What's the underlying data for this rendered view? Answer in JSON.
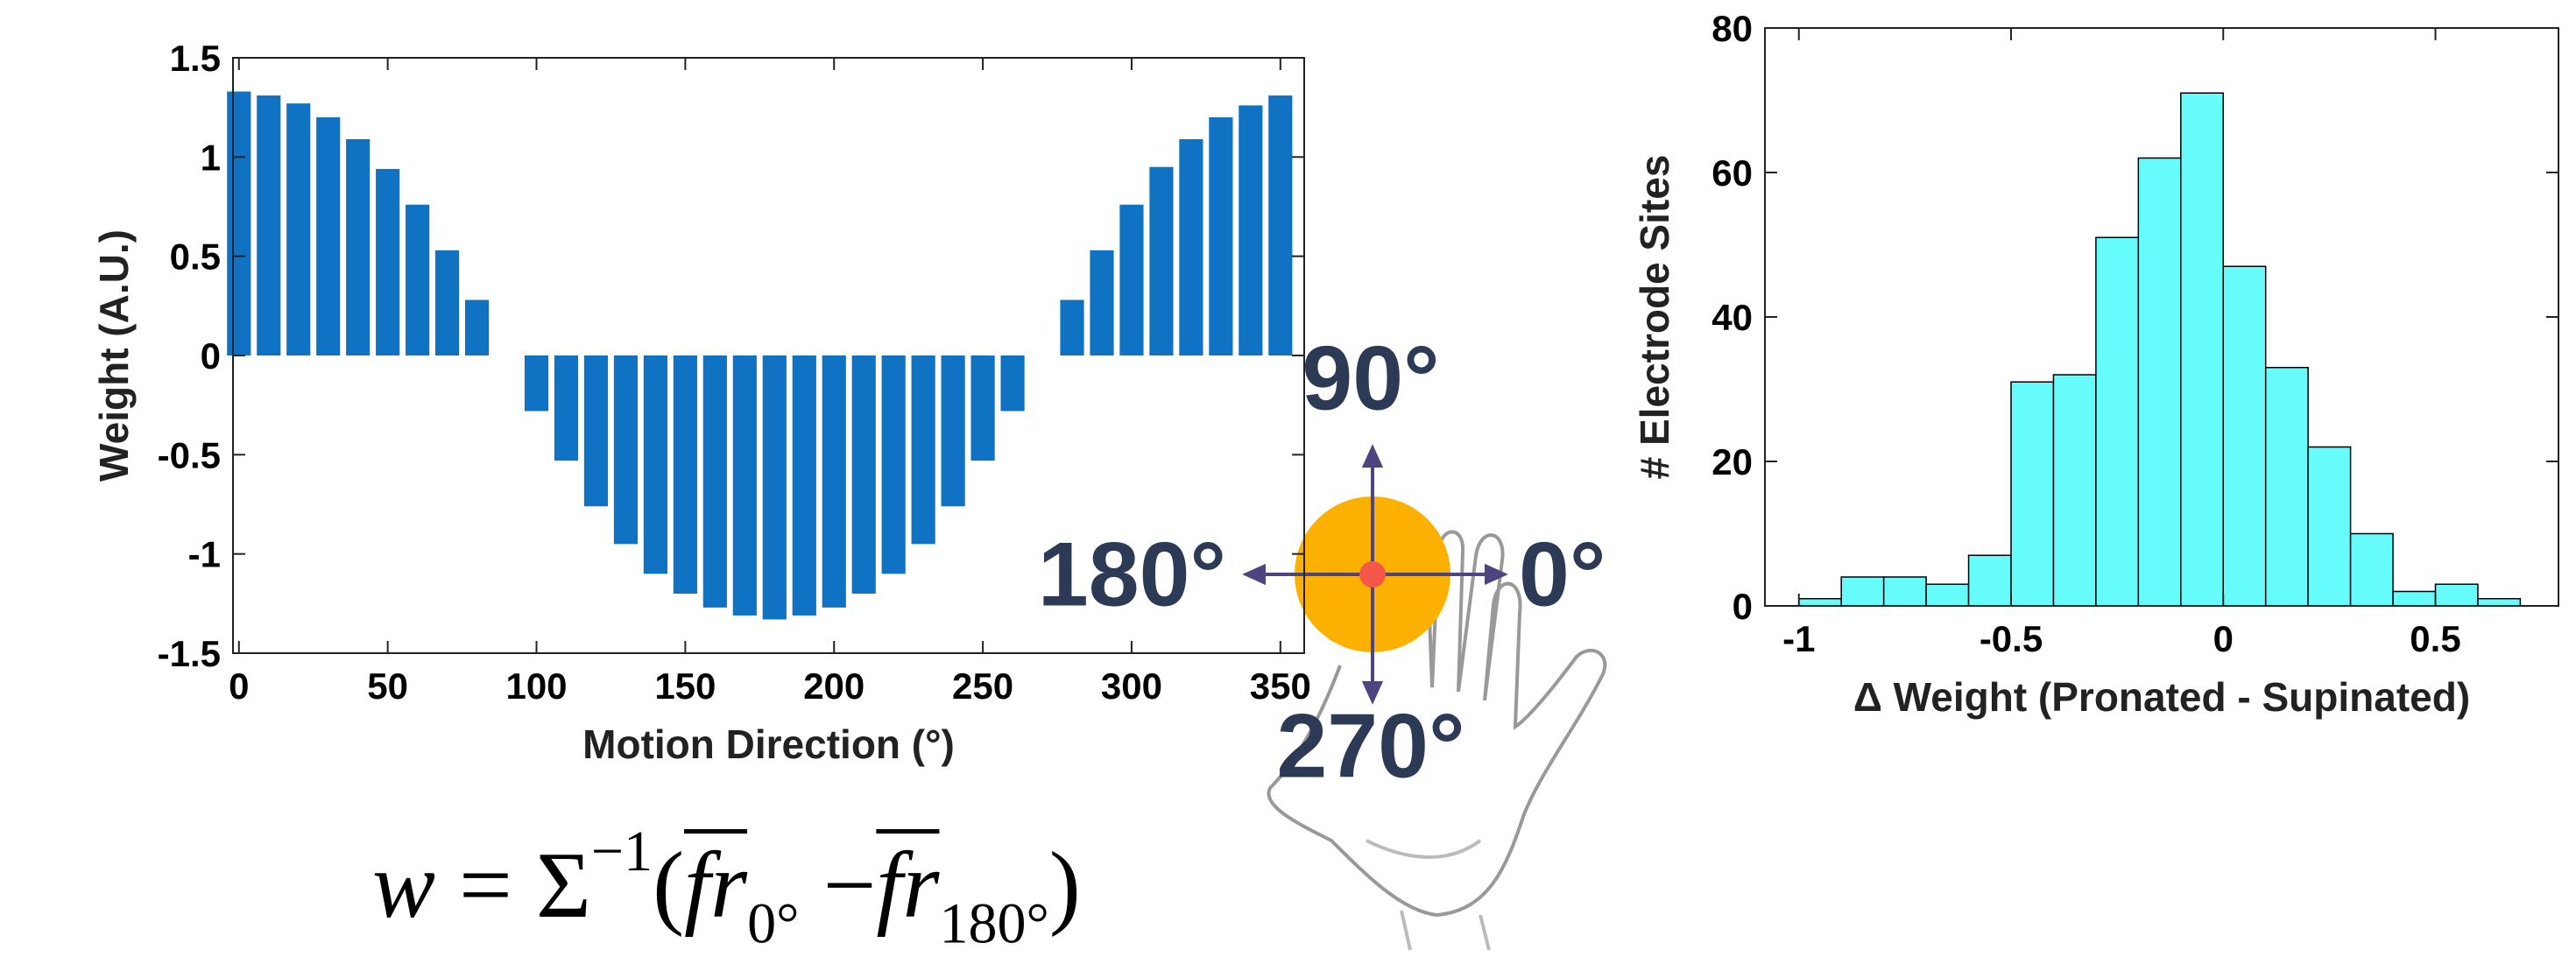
{
  "chart_data": [
    {
      "type": "bar",
      "xlabel": "Motion Direction (°)",
      "ylabel": "Weight (A.U.)",
      "color": "#0f72c2",
      "x": [
        0,
        10,
        20,
        30,
        40,
        50,
        60,
        70,
        80,
        90,
        100,
        110,
        120,
        130,
        140,
        150,
        160,
        170,
        180,
        190,
        200,
        210,
        220,
        230,
        240,
        250,
        260,
        270,
        280,
        290,
        300,
        310,
        320,
        330,
        340,
        350
      ],
      "values": [
        1.33,
        1.31,
        1.27,
        1.2,
        1.09,
        0.94,
        0.76,
        0.53,
        0.28,
        0,
        -0.28,
        -0.53,
        -0.76,
        -0.95,
        -1.1,
        -1.2,
        -1.27,
        -1.31,
        -1.33,
        -1.31,
        -1.27,
        -1.2,
        -1.1,
        -0.95,
        -0.76,
        -0.53,
        -0.28,
        0,
        0.28,
        0.53,
        0.76,
        0.95,
        1.09,
        1.2,
        1.26,
        1.31
      ],
      "xlim": [
        -2,
        358
      ],
      "xticks": [
        0,
        50,
        100,
        150,
        200,
        250,
        300,
        350
      ],
      "ylim": [
        -1.5,
        1.5
      ],
      "yticks": [
        -1.5,
        -1,
        -0.5,
        0,
        0.5,
        1,
        1.5
      ]
    },
    {
      "type": "histogram",
      "xlabel": "Δ Weight (Pronated - Supinated)",
      "ylabel": "# Electrode Sites",
      "color": "#66fcfc",
      "bins": [
        -1,
        -0.9,
        -0.8,
        -0.7,
        -0.6,
        -0.5,
        -0.4,
        -0.3,
        -0.2,
        -0.1,
        0,
        0.1,
        0.2,
        0.3,
        0.4,
        0.5,
        0.6,
        0.7
      ],
      "values": [
        1,
        4,
        4,
        3,
        7,
        31,
        32,
        51,
        62,
        71,
        47,
        33,
        22,
        10,
        2,
        3,
        1
      ],
      "xlim": [
        -1.08,
        0.79
      ],
      "xticks": [
        -1,
        -0.5,
        0,
        0.5
      ],
      "ylim": [
        0,
        80
      ],
      "yticks": [
        0,
        20,
        40,
        60,
        80
      ]
    }
  ],
  "diagram": {
    "up": "90°",
    "left": "180°",
    "right": "0°",
    "down": "270°"
  },
  "formula": {
    "lhs": "w",
    "equals": "=",
    "sigma": "Σ",
    "exponent": "−1",
    "open": "(",
    "fr1": "fr",
    "sub1": "0°",
    "minus": "−",
    "fr2": "fr",
    "sub2": "180°",
    "close": ")"
  }
}
